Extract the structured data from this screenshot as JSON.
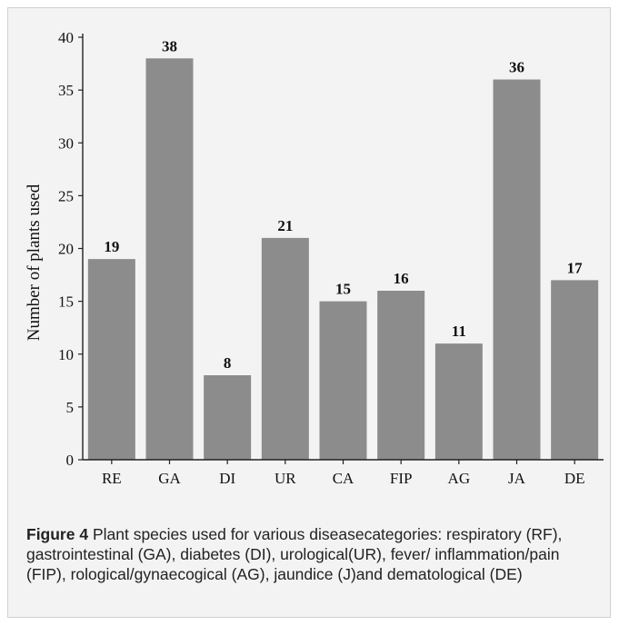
{
  "chart_data": {
    "type": "bar",
    "categories": [
      "RE",
      "GA",
      "DI",
      "UR",
      "CA",
      "FIP",
      "AG",
      "JA",
      "DE"
    ],
    "values": [
      19,
      38,
      8,
      21,
      15,
      16,
      11,
      36,
      17
    ],
    "ylabel": "Number of plants used",
    "ylim": [
      0,
      40
    ],
    "yticks": [
      0,
      5,
      10,
      15,
      20,
      25,
      30,
      35,
      40
    ],
    "bar_color": "#8c8c8c",
    "grid": false
  },
  "caption": {
    "label": "Figure 4",
    "text": " Plant species used for various diseasecategories: respiratory (RF), gastrointestinal (GA), diabetes (DI), urological(UR), fever/ inflammation/pain (FIP), rological/gynaecogical (AG), jaundice (J)and dematological (DE)"
  }
}
